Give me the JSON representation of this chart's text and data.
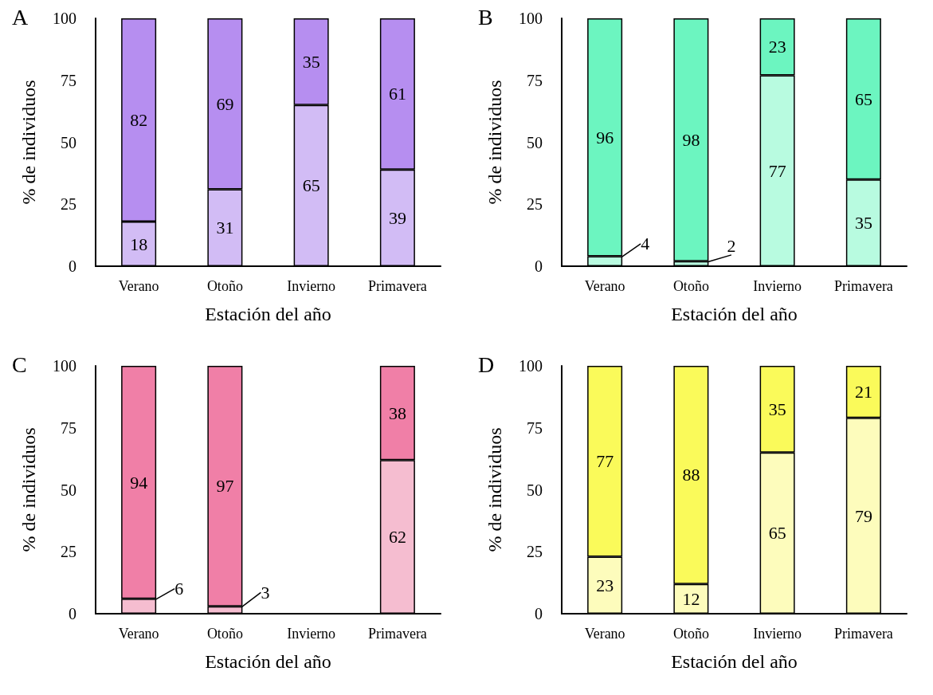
{
  "chart_data": [
    {
      "type": "bar",
      "title": "A",
      "xlabel": "Estación del año",
      "ylabel": "% de individuos",
      "categories": [
        "Verano",
        "Otoño",
        "Invierno",
        "Primavera"
      ],
      "stacked": true,
      "data_labels": true,
      "ylim": [
        0,
        100
      ],
      "yticks": [
        0,
        25,
        50,
        75,
        100
      ],
      "legend": false,
      "grid": false,
      "series": [
        {
          "color": "#d2bcf5",
          "values": [
            18,
            31,
            65,
            39
          ]
        },
        {
          "color": "#b68ef0",
          "values": [
            82,
            69,
            35,
            61
          ]
        }
      ]
    },
    {
      "type": "bar",
      "title": "B",
      "xlabel": "Estación del año",
      "ylabel": "% de individuos",
      "categories": [
        "Verano",
        "Otoño",
        "Invierno",
        "Primavera"
      ],
      "stacked": true,
      "data_labels": true,
      "ylim": [
        0,
        100
      ],
      "yticks": [
        0,
        25,
        50,
        75,
        100
      ],
      "legend": false,
      "grid": false,
      "series": [
        {
          "color": "#b8fbe0",
          "values": [
            4,
            2,
            77,
            35
          ]
        },
        {
          "color": "#6cf5c0",
          "values": [
            96,
            98,
            23,
            65
          ]
        }
      ]
    },
    {
      "type": "bar",
      "title": "C",
      "xlabel": "Estación del año",
      "ylabel": "% de individuos",
      "categories": [
        "Verano",
        "Otoño",
        "Invierno",
        "Primavera"
      ],
      "stacked": true,
      "data_labels": true,
      "ylim": [
        0,
        100
      ],
      "yticks": [
        0,
        25,
        50,
        75,
        100
      ],
      "legend": false,
      "grid": false,
      "series": [
        {
          "color": "#f5bdd0",
          "values": [
            6,
            3,
            null,
            62
          ]
        },
        {
          "color": "#f07fa7",
          "values": [
            94,
            97,
            null,
            38
          ]
        }
      ]
    },
    {
      "type": "bar",
      "title": "D",
      "xlabel": "Estación del año",
      "ylabel": "% de individuos",
      "categories": [
        "Verano",
        "Otoño",
        "Invierno",
        "Primavera"
      ],
      "stacked": true,
      "data_labels": true,
      "ylim": [
        0,
        100
      ],
      "yticks": [
        0,
        25,
        50,
        75,
        100
      ],
      "legend": false,
      "grid": false,
      "series": [
        {
          "color": "#fdfcbc",
          "values": [
            23,
            12,
            65,
            79
          ]
        },
        {
          "color": "#fafa5a",
          "values": [
            77,
            88,
            35,
            21
          ]
        }
      ]
    }
  ]
}
